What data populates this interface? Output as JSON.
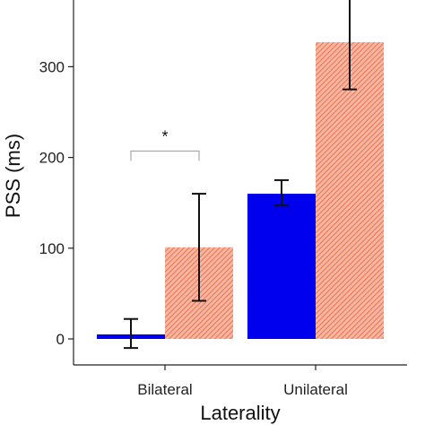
{
  "chart_data": {
    "type": "bar",
    "xlabel": "Laterality",
    "ylabel": "PSS (ms)",
    "categories": [
      "Bilateral",
      "Unilateral"
    ],
    "yticks": [
      0,
      100,
      200,
      300
    ],
    "ylim": [
      -28,
      395
    ],
    "grid": false,
    "series": [
      {
        "values": [
          5,
          160
        ],
        "error_low": [
          -10,
          147
        ],
        "error_high": [
          22,
          175
        ],
        "color": "#0000ee",
        "pattern": "solid"
      },
      {
        "values": [
          101,
          327
        ],
        "error_low": [
          42,
          275
        ],
        "error_high": [
          160,
          380
        ],
        "color": "#f2866a",
        "pattern": "diagonal-hatch"
      }
    ],
    "annotations": [
      {
        "type": "significance-bracket",
        "category": "Bilateral",
        "label": "*",
        "y": 207
      }
    ]
  }
}
